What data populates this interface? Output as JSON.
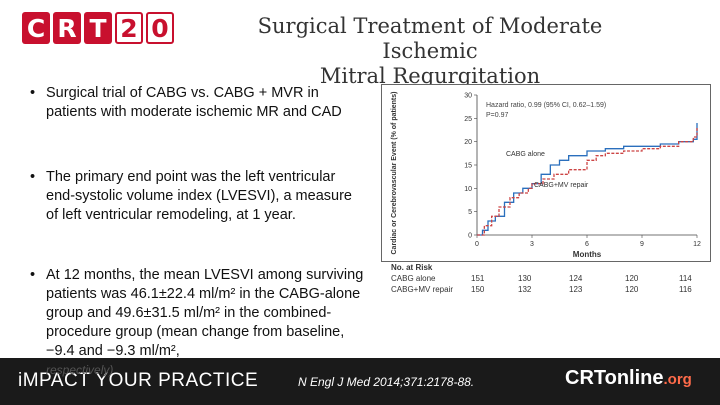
{
  "logo": {
    "letters": [
      "C",
      "R",
      "T",
      "2",
      "0"
    ]
  },
  "title": {
    "line1": "Surgical Treatment of Moderate Ischemic",
    "line2": "Mitral Regurgitation"
  },
  "bullets": [
    {
      "symbol": "•",
      "text": "Surgical trial of CABG vs. CABG + MVR in patients with moderate ischemic MR and CAD"
    },
    {
      "symbol": "•",
      "text": "The primary end point was the left ventricular end-systolic volume index (LVESVI), a measure of left ventricular remodeling, at 1 year."
    },
    {
      "symbol": "•",
      "text": "At 12 months, the mean LVESVI among surviving patients was 46.1±22.4 ml/m² in the CABG-alone group and 49.6±31.5 ml/m² in the combined-procedure group (mean change from baseline, −9.4 and −9.3 ml/m²,"
    },
    {
      "symbol": "",
      "text": "respectively)"
    }
  ],
  "chart_data": {
    "type": "line",
    "ylabel": "Cardiac or Cerebrovascular Event (% of patients)",
    "xlabel": "Months",
    "x_ticks": [
      "0",
      "3",
      "6",
      "9",
      "12"
    ],
    "y_ticks": [
      "0",
      "5",
      "10",
      "15",
      "20",
      "25",
      "30"
    ],
    "ylim": [
      0,
      30
    ],
    "xlim": [
      0,
      12
    ],
    "annotation_line1": "Hazard ratio, 0.99 (95% CI, 0.62–1.59)",
    "annotation_line2": "P=0.97",
    "series": [
      {
        "name": "CABG alone",
        "color": "#2a6fbd",
        "points": [
          [
            0,
            0
          ],
          [
            0.3,
            1
          ],
          [
            0.6,
            3
          ],
          [
            1,
            4
          ],
          [
            1.5,
            7
          ],
          [
            2,
            9
          ],
          [
            2.5,
            10
          ],
          [
            3,
            11
          ],
          [
            3.5,
            13
          ],
          [
            4,
            15
          ],
          [
            4.5,
            16
          ],
          [
            5,
            17
          ],
          [
            6,
            18
          ],
          [
            7,
            18.5
          ],
          [
            8,
            19
          ],
          [
            9,
            19
          ],
          [
            10,
            19.5
          ],
          [
            11,
            20
          ],
          [
            11.8,
            20.5
          ],
          [
            12,
            24
          ]
        ]
      },
      {
        "name": "CABG+MV repair",
        "color": "#cc4444",
        "points": [
          [
            0,
            0
          ],
          [
            0.4,
            2
          ],
          [
            0.8,
            4
          ],
          [
            1.2,
            6
          ],
          [
            1.8,
            8
          ],
          [
            2.3,
            9
          ],
          [
            2.8,
            10
          ],
          [
            3,
            11
          ],
          [
            3.6,
            12
          ],
          [
            4.2,
            13
          ],
          [
            5,
            14
          ],
          [
            6,
            16
          ],
          [
            6.5,
            17
          ],
          [
            7,
            17.5
          ],
          [
            8,
            18
          ],
          [
            9,
            18.5
          ],
          [
            10,
            19
          ],
          [
            11,
            20
          ],
          [
            11.8,
            21
          ],
          [
            12,
            23
          ]
        ]
      }
    ],
    "risk_table": {
      "title": "No. at Risk",
      "rows": [
        {
          "label": "CABG alone",
          "values": [
            "151",
            "130",
            "124",
            "120",
            "114"
          ]
        },
        {
          "label": "CABG+MV repair",
          "values": [
            "150",
            "132",
            "123",
            "120",
            "116"
          ]
        }
      ]
    }
  },
  "footer": {
    "left": "iMPACT YOUR PRACTICE",
    "citation": "N Engl J Med 2014;371:2178-88.",
    "brand": "CRTonline",
    "brand_suffix": ".org"
  }
}
